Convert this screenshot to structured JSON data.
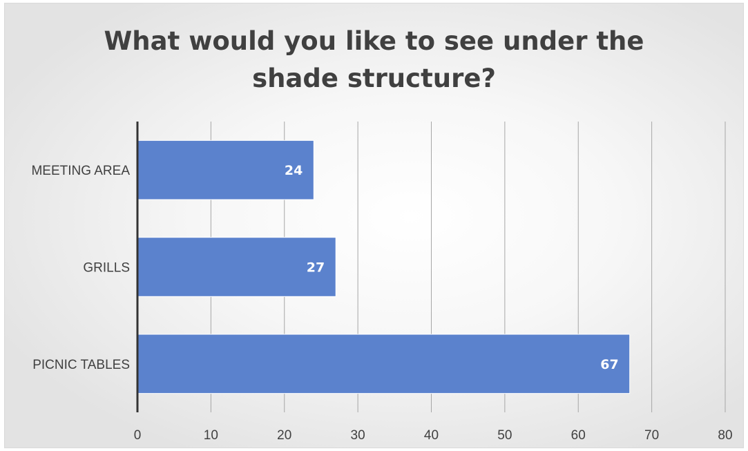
{
  "chart_data": {
    "type": "bar",
    "orientation": "horizontal",
    "title_lines": [
      "What would you like to see under the",
      "shade structure?"
    ],
    "categories": [
      "MEETING AREA",
      "GRILLS",
      "PICNIC TABLES"
    ],
    "values": [
      24,
      27,
      67
    ],
    "xlim": [
      0,
      80
    ],
    "x_ticks": [
      "0",
      "10",
      "20",
      "30",
      "40",
      "50",
      "60",
      "70",
      "80"
    ],
    "data_labels": [
      "24",
      "27",
      "67"
    ],
    "grid": "vertical",
    "legend": "none",
    "colors": {
      "bar": "#5b82cd",
      "bar_border": "#ffffff",
      "grid": "#a6a6a6",
      "axis": "#333333",
      "label_text": "#404040",
      "data_label": "#ffffff"
    }
  }
}
